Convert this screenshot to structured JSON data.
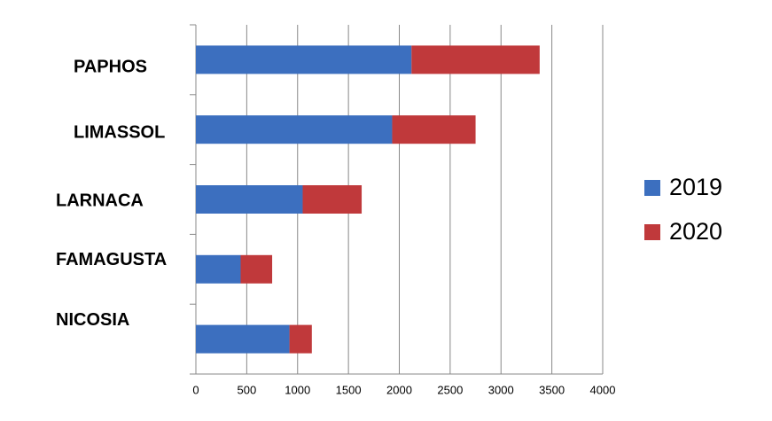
{
  "chart_data": {
    "type": "stacked-bar-horizontal",
    "categories": [
      "PAPHOS",
      "LIMASSOL",
      "LARNACA",
      "FAMAGUSTA",
      "NICOSIA"
    ],
    "series": [
      {
        "name": "2019",
        "color": "#3c6fbf",
        "values": [
          2120,
          1930,
          1050,
          440,
          920
        ]
      },
      {
        "name": "2020",
        "color": "#c0393b",
        "values": [
          1260,
          820,
          580,
          310,
          220
        ]
      }
    ],
    "xlim": [
      0,
      4000
    ],
    "xticks": [
      0,
      500,
      1000,
      1500,
      2000,
      2500,
      3000,
      3500,
      4000
    ],
    "grid": true,
    "legend": "right"
  }
}
